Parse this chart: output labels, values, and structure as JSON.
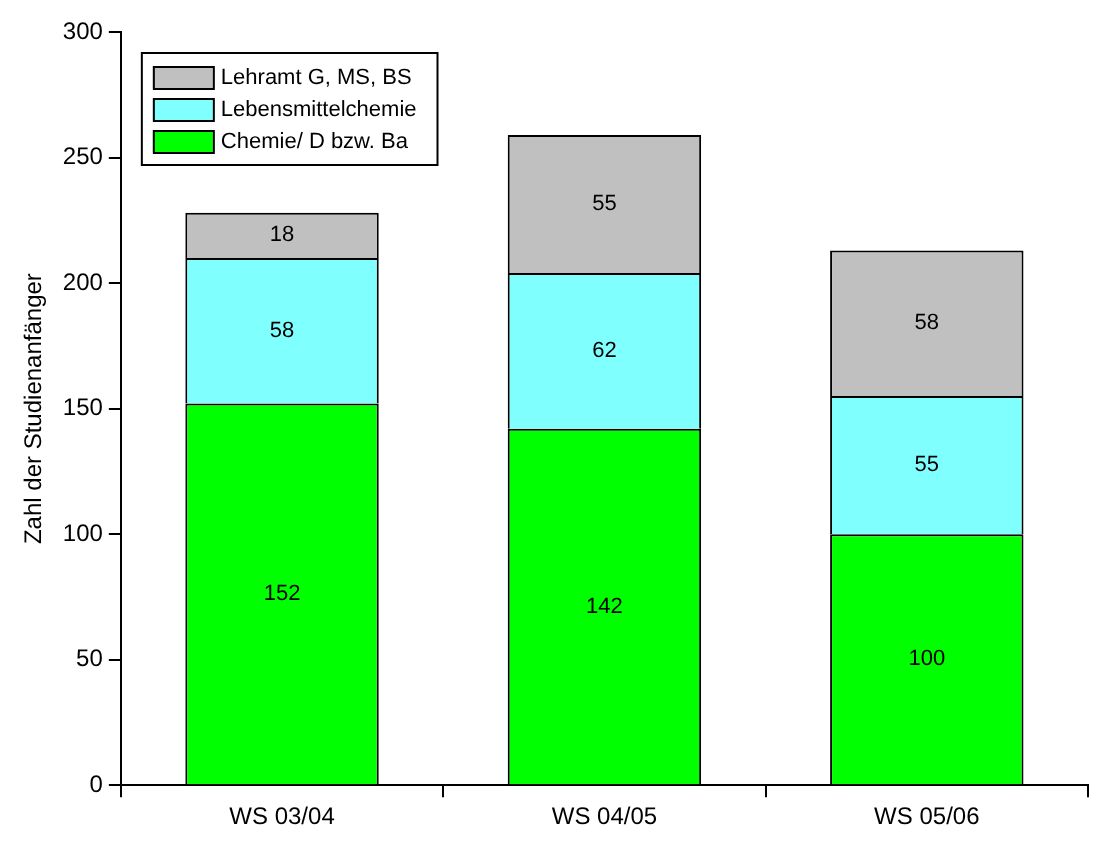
{
  "chart_data": {
    "type": "bar",
    "stacked": true,
    "ylabel": "Zahl der Studienanfänger",
    "categories": [
      "WS 03/04",
      "WS 04/05",
      "WS 05/06"
    ],
    "series": [
      {
        "name": "Chemie/ D bzw. Ba",
        "color": "#00ff00",
        "values": [
          152,
          142,
          100
        ],
        "value_labels": [
          "152",
          "142",
          "100"
        ]
      },
      {
        "name": "Lebensmittelchemie",
        "color": "#80ffff",
        "values": [
          58,
          62,
          55
        ],
        "value_labels": [
          "58",
          "62",
          "55"
        ]
      },
      {
        "name": "Lehramt G, MS, BS",
        "color": "#c0c0c0",
        "values": [
          18,
          55,
          58
        ],
        "value_labels": [
          "18",
          "55",
          "58"
        ]
      }
    ],
    "ylim": [
      0,
      300
    ],
    "yticks": [
      0,
      50,
      100,
      150,
      200,
      250,
      300
    ],
    "grid": false,
    "legend": "top left"
  }
}
